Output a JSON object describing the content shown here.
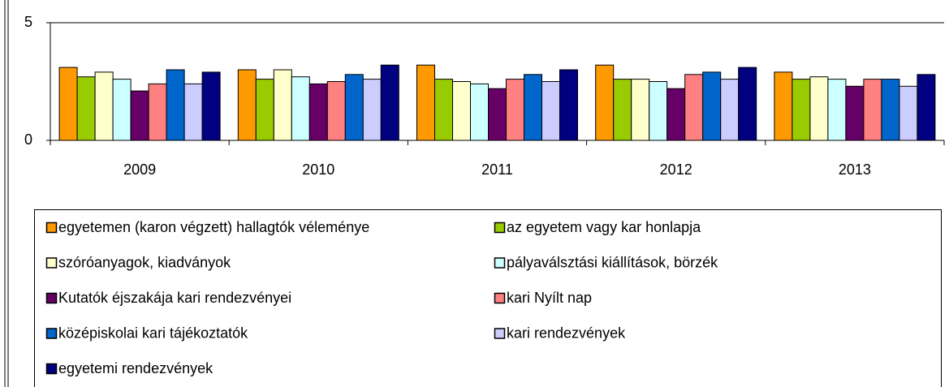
{
  "chart_data": {
    "type": "bar",
    "categories": [
      "2009",
      "2010",
      "2011",
      "2012",
      "2013"
    ],
    "ylim": [
      0,
      5
    ],
    "yticks": [
      0,
      5
    ],
    "grid": true,
    "series": [
      {
        "name": "egyetemen (karon végzett) hallagtók véleménye",
        "color": "#ff9900",
        "values": [
          3.1,
          3.0,
          3.2,
          3.2,
          2.9
        ]
      },
      {
        "name": "az egyetem vagy kar honlapja",
        "color": "#99cc00",
        "values": [
          2.7,
          2.6,
          2.6,
          2.6,
          2.6
        ]
      },
      {
        "name": "szóróanyagok, kiadványok",
        "color": "#ffffcc",
        "values": [
          2.9,
          3.0,
          2.5,
          2.6,
          2.7
        ]
      },
      {
        "name": "pályaválsztási kiállítások, börzék",
        "color": "#ccffff",
        "values": [
          2.6,
          2.7,
          2.4,
          2.5,
          2.6
        ]
      },
      {
        "name": "Kutatók éjszakája kari rendezvényei",
        "color": "#660066",
        "values": [
          2.1,
          2.4,
          2.2,
          2.2,
          2.3
        ]
      },
      {
        "name": "kari Nyílt nap",
        "color": "#ff8080",
        "values": [
          2.4,
          2.5,
          2.6,
          2.8,
          2.6
        ]
      },
      {
        "name": "középiskolai kari tájékoztatók",
        "color": "#0066cc",
        "values": [
          3.0,
          2.8,
          2.8,
          2.9,
          2.6
        ]
      },
      {
        "name": "kari rendezvények",
        "color": "#ccccff",
        "values": [
          2.4,
          2.6,
          2.5,
          2.6,
          2.3
        ]
      },
      {
        "name": "egyetemi rendezvények",
        "color": "#000080",
        "values": [
          2.9,
          3.2,
          3.0,
          3.1,
          2.8
        ]
      }
    ]
  }
}
